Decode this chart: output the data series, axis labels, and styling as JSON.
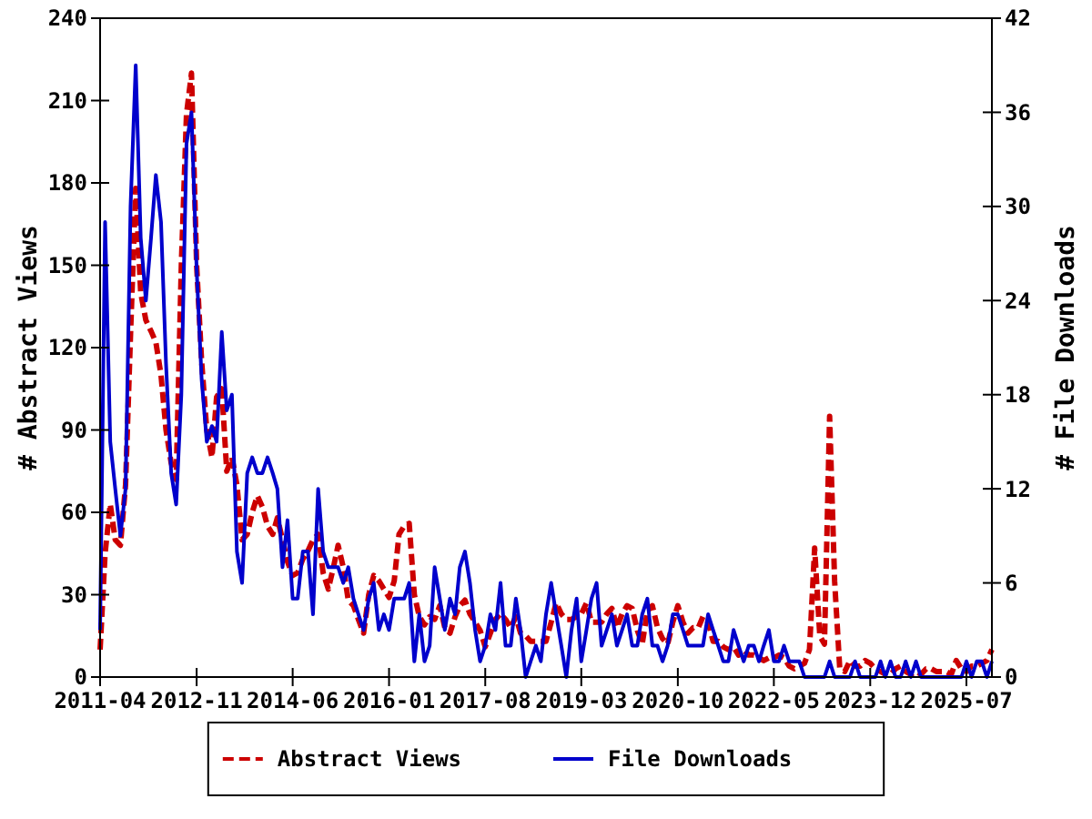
{
  "chart_data": {
    "type": "line",
    "ylabel": "# Abstract Views",
    "y2label": "# File Downloads",
    "x": [
      "2011-04",
      "2011-05",
      "2011-06",
      "2011-07",
      "2011-08",
      "2011-09",
      "2011-10",
      "2011-11",
      "2011-12",
      "2012-01",
      "2012-02",
      "2012-03",
      "2012-04",
      "2012-05",
      "2012-06",
      "2012-07",
      "2012-08",
      "2012-09",
      "2012-10",
      "2012-11",
      "2012-12",
      "2013-01",
      "2013-02",
      "2013-03",
      "2013-04",
      "2013-05",
      "2013-06",
      "2013-07",
      "2013-08",
      "2013-09",
      "2013-10",
      "2013-11",
      "2013-12",
      "2014-01",
      "2014-02",
      "2014-03",
      "2014-04",
      "2014-05",
      "2014-06",
      "2014-07",
      "2014-08",
      "2014-09",
      "2014-10",
      "2014-11",
      "2014-12",
      "2015-01",
      "2015-02",
      "2015-03",
      "2015-04",
      "2015-05",
      "2015-06",
      "2015-07",
      "2015-08",
      "2015-09",
      "2015-10",
      "2015-11",
      "2015-12",
      "2016-01",
      "2016-02",
      "2016-03",
      "2016-04",
      "2016-05",
      "2016-06",
      "2016-07",
      "2016-08",
      "2016-09",
      "2016-10",
      "2016-11",
      "2016-12",
      "2017-01",
      "2017-02",
      "2017-03",
      "2017-04",
      "2017-05",
      "2017-06",
      "2017-07",
      "2017-08",
      "2017-09",
      "2017-10",
      "2017-11",
      "2017-12",
      "2018-01",
      "2018-02",
      "2018-03",
      "2018-04",
      "2018-05",
      "2018-06",
      "2018-07",
      "2018-08",
      "2018-09",
      "2018-10",
      "2018-11",
      "2018-12",
      "2019-01",
      "2019-02",
      "2019-03",
      "2019-04",
      "2019-05",
      "2019-06",
      "2019-07",
      "2019-08",
      "2019-09",
      "2019-10",
      "2019-11",
      "2019-12",
      "2020-01",
      "2020-02",
      "2020-03",
      "2020-04",
      "2020-05",
      "2020-06",
      "2020-07",
      "2020-08",
      "2020-09",
      "2020-10",
      "2020-11",
      "2020-12",
      "2021-01",
      "2021-02",
      "2021-03",
      "2021-04",
      "2021-05",
      "2021-06",
      "2021-07",
      "2021-08",
      "2021-09",
      "2021-10",
      "2021-11",
      "2021-12",
      "2022-01",
      "2022-02",
      "2022-03",
      "2022-04",
      "2022-05",
      "2022-06",
      "2022-07",
      "2022-08",
      "2022-09",
      "2022-10",
      "2022-11",
      "2022-12",
      "2023-01",
      "2023-02",
      "2023-03",
      "2023-04",
      "2023-05",
      "2023-06",
      "2023-07",
      "2023-08",
      "2023-09",
      "2023-10",
      "2023-11",
      "2023-12",
      "2024-01",
      "2024-02",
      "2024-03",
      "2024-04",
      "2024-05",
      "2024-06",
      "2024-07",
      "2024-08",
      "2024-09",
      "2024-10",
      "2024-11",
      "2024-12",
      "2025-01",
      "2025-02",
      "2025-03",
      "2025-04",
      "2025-05",
      "2025-06",
      "2025-07",
      "2025-08",
      "2025-09",
      "2025-10",
      "2025-11",
      "2025-12"
    ],
    "series": [
      {
        "name": "Abstract Views",
        "color": "#cc0000",
        "line_style": "dashed",
        "values": [
          10,
          45,
          63,
          50,
          48,
          70,
          125,
          178,
          140,
          130,
          126,
          122,
          110,
          90,
          78,
          72,
          150,
          205,
          220,
          150,
          115,
          90,
          80,
          102,
          105,
          75,
          80,
          70,
          50,
          52,
          60,
          66,
          62,
          55,
          52,
          58,
          50,
          42,
          37,
          38,
          43,
          46,
          50,
          52,
          38,
          32,
          40,
          48,
          40,
          28,
          26,
          21,
          16,
          30,
          37,
          35,
          32,
          29,
          35,
          52,
          55,
          56,
          30,
          22,
          19,
          22,
          21,
          26,
          18,
          16,
          22,
          26,
          28,
          23,
          20,
          17,
          11,
          16,
          21,
          23,
          21,
          18,
          22,
          16,
          15,
          13,
          13,
          13,
          13,
          20,
          27,
          23,
          21,
          21,
          22,
          23,
          27,
          20,
          20,
          20,
          23,
          25,
          18,
          23,
          26,
          25,
          17,
          12,
          24,
          26,
          18,
          14,
          12,
          20,
          26,
          20,
          16,
          18,
          18,
          22,
          20,
          13,
          13,
          11,
          10,
          11,
          8,
          10,
          8,
          8,
          7,
          6,
          7,
          7,
          8,
          7,
          4,
          3,
          4,
          5,
          10,
          47,
          15,
          12,
          95,
          35,
          3,
          2,
          6,
          4,
          4,
          6,
          5,
          3,
          2,
          1,
          1,
          3,
          4,
          2,
          1,
          2,
          1,
          3,
          3,
          2,
          2,
          2,
          1,
          6,
          3,
          2,
          4,
          4,
          5,
          6,
          10
        ]
      },
      {
        "name": "File Downloads",
        "color": "#0000cc",
        "line_style": "solid",
        "axis": "y2",
        "values": [
          3,
          29,
          15,
          12,
          9,
          12,
          30,
          39,
          28,
          24,
          28,
          32,
          29,
          20,
          13,
          11,
          18,
          34,
          36,
          26,
          19,
          15,
          16,
          15,
          22,
          17,
          18,
          8,
          6,
          13,
          14,
          13,
          13,
          14,
          13,
          12,
          7,
          10,
          5,
          5,
          8,
          8,
          4,
          12,
          8,
          7,
          7,
          7,
          6,
          7,
          5,
          4,
          3,
          5,
          6,
          3,
          4,
          3,
          5,
          5,
          5,
          6,
          1,
          4,
          1,
          2,
          7,
          5,
          3,
          5,
          4,
          7,
          8,
          6,
          3,
          1,
          2,
          4,
          3,
          6,
          2,
          2,
          5,
          3,
          0,
          1,
          2,
          1,
          4,
          6,
          4,
          2,
          0,
          3,
          5,
          1,
          3,
          5,
          6,
          2,
          3,
          4,
          2,
          3,
          4,
          2,
          2,
          4,
          5,
          2,
          2,
          1,
          2,
          4,
          4,
          3,
          2,
          2,
          2,
          2,
          4,
          3,
          2,
          1,
          1,
          3,
          2,
          1,
          2,
          2,
          1,
          2,
          3,
          1,
          1,
          2,
          1,
          1,
          1,
          0,
          0,
          0,
          0,
          0,
          1,
          0,
          0,
          0,
          0,
          1,
          0,
          0,
          0,
          0,
          1,
          0,
          1,
          0,
          0,
          1,
          0,
          1,
          0,
          0,
          0,
          0,
          0,
          0,
          0,
          0,
          0,
          1,
          0,
          1,
          1,
          0,
          1
        ]
      }
    ],
    "xlim": [
      "2011-04",
      "2025-12"
    ],
    "xticks": [
      "2011-04",
      "2012-11",
      "2014-06",
      "2016-01",
      "2017-08",
      "2019-03",
      "2020-10",
      "2022-05",
      "2023-12",
      "2025-07"
    ],
    "ylim": [
      0,
      240
    ],
    "yticks": [
      0,
      30,
      60,
      90,
      120,
      150,
      180,
      210,
      240
    ],
    "y2lim": [
      0,
      42
    ],
    "y2ticks": [
      0,
      6,
      12,
      18,
      24,
      30,
      36,
      42
    ],
    "legend": "bottom",
    "grid": false,
    "marker": "none"
  }
}
